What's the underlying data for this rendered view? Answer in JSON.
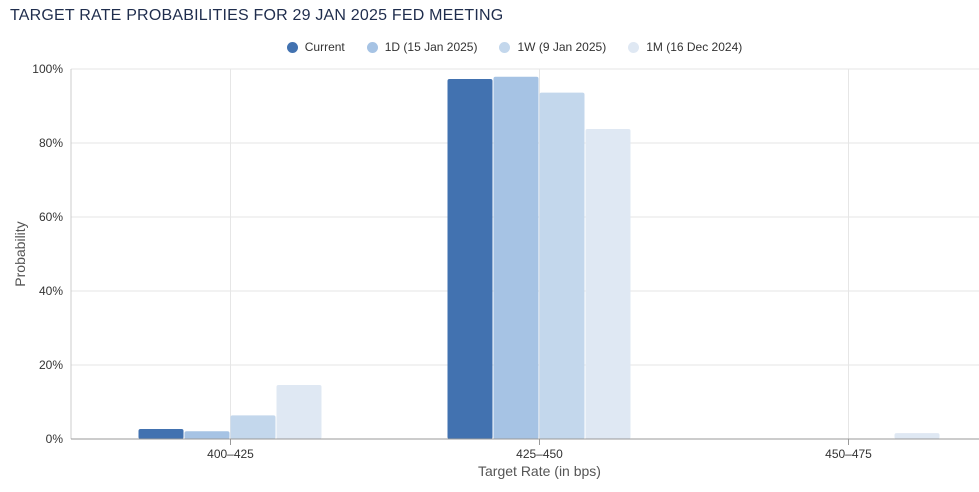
{
  "chart_data": {
    "type": "bar",
    "title": "TARGET RATE PROBABILITIES FOR 29 JAN 2025 FED MEETING",
    "xlabel": "Target Rate (in bps)",
    "ylabel": "Probability",
    "categories": [
      "400-425",
      "425-450",
      "450-475"
    ],
    "series": [
      {
        "name": "Current",
        "color": "#4272b0",
        "values": [
          2.7,
          97.3,
          0.0
        ]
      },
      {
        "name": "1D (15 Jan 2025)",
        "color": "#a6c3e4",
        "values": [
          2.1,
          97.9,
          0.0
        ]
      },
      {
        "name": "1W (9 Jan 2025)",
        "color": "#c3d7ec",
        "values": [
          6.4,
          93.6,
          0.0
        ]
      },
      {
        "name": "1M (16 Dec 2024)",
        "color": "#dfe8f3",
        "values": [
          14.6,
          83.8,
          1.6
        ]
      }
    ],
    "ylim": [
      0,
      100
    ],
    "yticks": [
      "0%",
      "20%",
      "40%",
      "60%",
      "80%",
      "100%"
    ],
    "grid": true,
    "legend_position": "top-center"
  }
}
